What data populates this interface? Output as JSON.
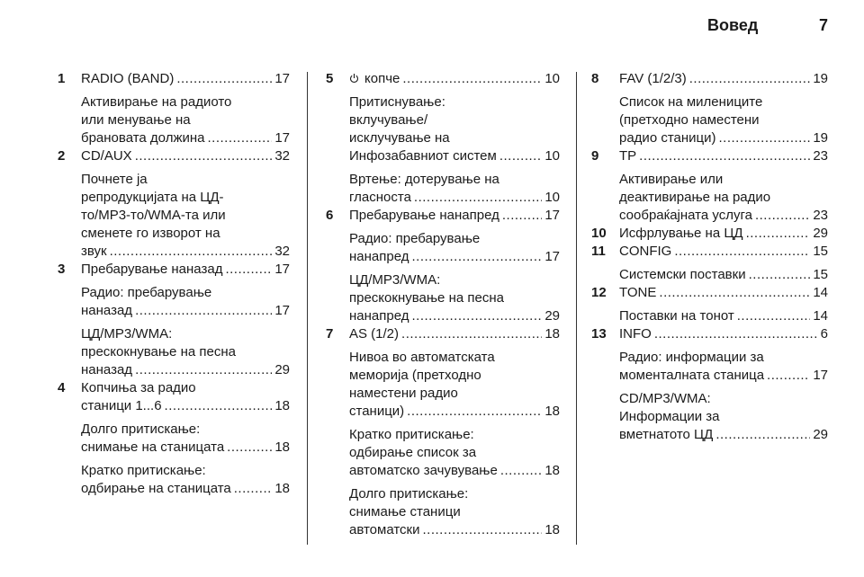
{
  "header": {
    "title": "Вовед",
    "page_number": "7"
  },
  "columns": [
    [
      {
        "num": "1",
        "lines": [
          "RADIO (BAND)"
        ],
        "page": "17"
      },
      {
        "lines": [
          "Активирање на радиото",
          "или менување на",
          "брановата должина"
        ],
        "page": "17"
      },
      {
        "num": "2",
        "lines": [
          "CD/AUX"
        ],
        "page": "32"
      },
      {
        "lines": [
          "Почнете ја",
          "репродукцијата на ЦД-",
          "то/MP3-то/WMA-та или",
          "сменете го изворот на",
          "звук"
        ],
        "page": "32"
      },
      {
        "num": "3",
        "lines": [
          "Пребарување наназад"
        ],
        "page": "17"
      },
      {
        "lines": [
          "Радио: пребарување",
          "наназад"
        ],
        "page": "17"
      },
      {
        "lines": [
          "ЦД/MP3/WMA:",
          "прескокнување на песна",
          "наназад"
        ],
        "page": "29"
      },
      {
        "num": "4",
        "lines": [
          "Копчиња за радио",
          "станици 1...6"
        ],
        "page": "18"
      },
      {
        "lines": [
          "Долго притискање:",
          "снимање на станицата"
        ],
        "page": "18"
      },
      {
        "lines": [
          "Кратко притискање:",
          "одбирање на станицата"
        ],
        "page": "18"
      }
    ],
    [
      {
        "num": "5",
        "icon": "power-icon",
        "lines": [
          "копче"
        ],
        "page": "10"
      },
      {
        "lines": [
          "Притиснување:",
          "вклучување/",
          "исклучување на",
          "Инфозабавниот систем"
        ],
        "page": "10"
      },
      {
        "lines": [
          "Вртење: дотерување на",
          "гласноста"
        ],
        "page": "10"
      },
      {
        "num": "6",
        "lines": [
          "Пребарување нанапред"
        ],
        "page": "17"
      },
      {
        "lines": [
          "Радио: пребарување",
          "нанапред"
        ],
        "page": "17"
      },
      {
        "lines": [
          "ЦД/MP3/WMA:",
          "прескокнување на песна",
          "нанапред"
        ],
        "page": "29"
      },
      {
        "num": "7",
        "lines": [
          "AS (1/2)"
        ],
        "page": "18"
      },
      {
        "lines": [
          "Нивоа во автоматската",
          "меморија (претходно",
          "наместени радио",
          "станици)"
        ],
        "page": "18"
      },
      {
        "lines": [
          "Кратко притискање:",
          "одбирање список за",
          "автоматско зачувување"
        ],
        "page": "18"
      },
      {
        "lines": [
          "Долго притискање:",
          "снимање станици",
          "автоматски"
        ],
        "page": "18"
      }
    ],
    [
      {
        "num": "8",
        "lines": [
          "FAV (1/2/3)"
        ],
        "page": "19"
      },
      {
        "lines": [
          "Список на милениците",
          "(претходно наместени",
          "радио станици)"
        ],
        "page": "19"
      },
      {
        "num": "9",
        "lines": [
          "TP"
        ],
        "page": "23"
      },
      {
        "lines": [
          "Активирање или",
          "деактивирање на радио",
          "сообраќајната услуга"
        ],
        "page": "23"
      },
      {
        "num": "10",
        "lines": [
          "Исфрлување на ЦД"
        ],
        "page": "29"
      },
      {
        "num": "11",
        "lines": [
          "CONFIG"
        ],
        "page": "15"
      },
      {
        "lines": [
          "Системски поставки"
        ],
        "page": "15"
      },
      {
        "num": "12",
        "lines": [
          "TONE"
        ],
        "page": "14"
      },
      {
        "lines": [
          "Поставки на тонот"
        ],
        "page": "14"
      },
      {
        "num": "13",
        "lines": [
          "INFO"
        ],
        "page": "6"
      },
      {
        "lines": [
          "Радио: информации за",
          "моменталната станица"
        ],
        "page": "17"
      },
      {
        "lines": [
          "CD/MP3/WMA:",
          "Информации за",
          "вметнатото ЦД"
        ],
        "page": "29"
      }
    ]
  ]
}
